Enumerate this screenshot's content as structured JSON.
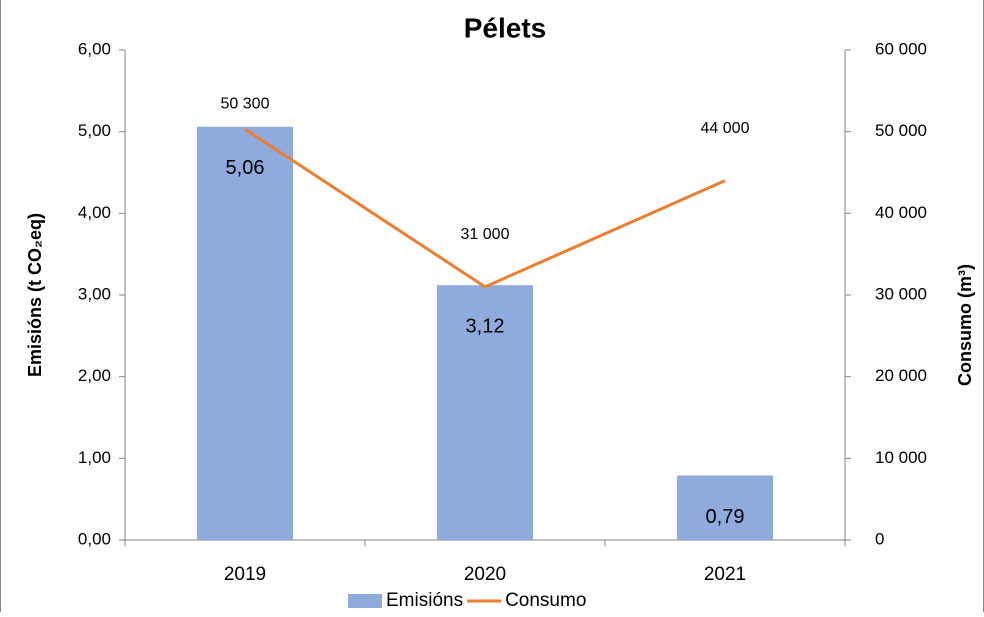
{
  "chart_data": {
    "type": "bar-line",
    "title": "Pélets",
    "categories": [
      "2019",
      "2020",
      "2021"
    ],
    "series": [
      {
        "name": "Emisións",
        "type": "bar",
        "color": "#8faadc",
        "values": [
          5.06,
          3.12,
          0.79
        ],
        "value_labels": [
          "5,06",
          "3,12",
          "0,79"
        ]
      },
      {
        "name": "Consumo",
        "type": "line",
        "axis": "y2",
        "color": "#ed7d31",
        "values": [
          50300,
          31000,
          44000
        ],
        "value_labels": [
          "50 300",
          "31 000",
          "44 000"
        ]
      }
    ],
    "ylabel": "Emisións (t CO₂eq)",
    "y2label": "Consumo (m³)",
    "ylim": [
      0,
      6
    ],
    "yticks": [
      {
        "value": 0,
        "label": "0,00"
      },
      {
        "value": 1,
        "label": "1,00"
      },
      {
        "value": 2,
        "label": "2,00"
      },
      {
        "value": 3,
        "label": "3,00"
      },
      {
        "value": 4,
        "label": "4,00"
      },
      {
        "value": 5,
        "label": "5,00"
      },
      {
        "value": 6,
        "label": "6,00"
      }
    ],
    "y2lim": [
      0,
      60000
    ],
    "y2ticks": [
      0,
      {
        "value": 10000,
        "label": "10 000"
      },
      {
        "value": 20000,
        "label": "20 000"
      },
      {
        "value": 30000,
        "label": "30 000"
      },
      {
        "value": 40000,
        "label": "40 000"
      },
      {
        "value": 50000,
        "label": "50 000"
      },
      {
        "value": 60000,
        "label": "60 000"
      }
    ],
    "grid": false,
    "legend": "bottom"
  }
}
